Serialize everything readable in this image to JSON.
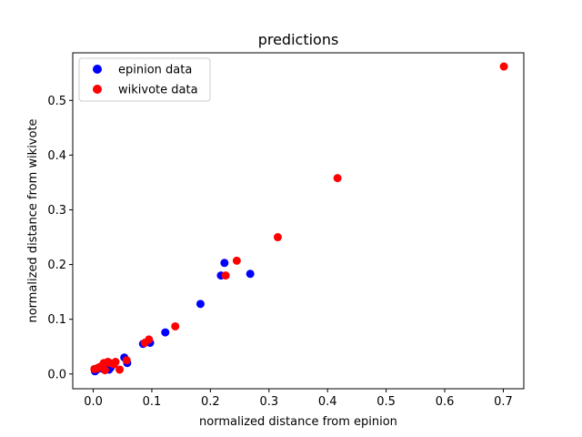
{
  "chart_data": {
    "type": "scatter",
    "title": "predictions",
    "xlabel": "normalized distance from epinion",
    "ylabel": "normalized distance from wikivote",
    "xlim": [
      -0.035,
      0.735
    ],
    "ylim": [
      -0.027,
      0.587
    ],
    "xticks": [
      0.0,
      0.1,
      0.2,
      0.3,
      0.4,
      0.5,
      0.6,
      0.7
    ],
    "xtick_labels": [
      "0.0",
      "0.1",
      "0.2",
      "0.3",
      "0.4",
      "0.5",
      "0.6",
      "0.7"
    ],
    "yticks": [
      0.0,
      0.1,
      0.2,
      0.3,
      0.4,
      0.5
    ],
    "ytick_labels": [
      "0.0",
      "0.1",
      "0.2",
      "0.3",
      "0.4",
      "0.5"
    ],
    "legend_position": "top-left",
    "grid": false,
    "series": [
      {
        "name": "epinion data",
        "color": "#0000ff",
        "points": [
          [
            0.003,
            0.005
          ],
          [
            0.006,
            0.008
          ],
          [
            0.01,
            0.012
          ],
          [
            0.015,
            0.01
          ],
          [
            0.02,
            0.015
          ],
          [
            0.027,
            0.008
          ],
          [
            0.03,
            0.012
          ],
          [
            0.035,
            0.018
          ],
          [
            0.053,
            0.03
          ],
          [
            0.058,
            0.02
          ],
          [
            0.085,
            0.055
          ],
          [
            0.097,
            0.057
          ],
          [
            0.123,
            0.076
          ],
          [
            0.183,
            0.128
          ],
          [
            0.218,
            0.18
          ],
          [
            0.224,
            0.203
          ],
          [
            0.268,
            0.183
          ]
        ]
      },
      {
        "name": "wikivote data",
        "color": "#ff0000",
        "points": [
          [
            0.002,
            0.009
          ],
          [
            0.006,
            0.01
          ],
          [
            0.01,
            0.012
          ],
          [
            0.015,
            0.015
          ],
          [
            0.018,
            0.02
          ],
          [
            0.02,
            0.007
          ],
          [
            0.025,
            0.022
          ],
          [
            0.028,
            0.02
          ],
          [
            0.035,
            0.018
          ],
          [
            0.038,
            0.022
          ],
          [
            0.045,
            0.008
          ],
          [
            0.057,
            0.025
          ],
          [
            0.088,
            0.057
          ],
          [
            0.095,
            0.063
          ],
          [
            0.14,
            0.087
          ],
          [
            0.226,
            0.18
          ],
          [
            0.245,
            0.207
          ],
          [
            0.315,
            0.25
          ],
          [
            0.417,
            0.358
          ],
          [
            0.701,
            0.562
          ]
        ]
      }
    ]
  }
}
